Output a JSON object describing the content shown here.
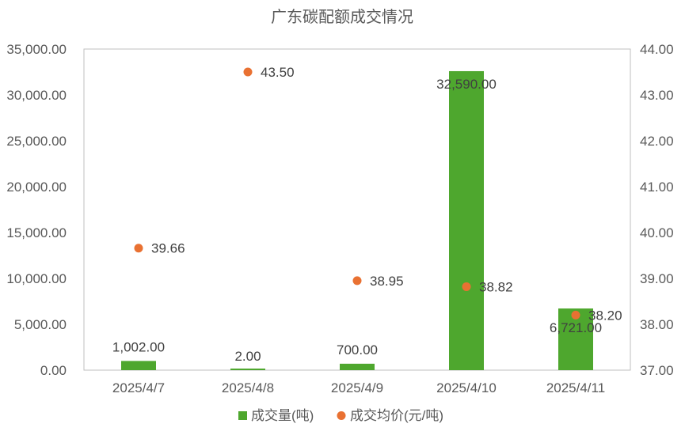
{
  "chart_data": {
    "type": "bar",
    "title": "广东碳配额成交情况",
    "categories": [
      "2025/4/7",
      "2025/4/8",
      "2025/4/9",
      "2025/4/10",
      "2025/4/11"
    ],
    "series": [
      {
        "name": "成交量(吨)",
        "type": "bar",
        "axis": "left",
        "color": "#4EA72E",
        "values": [
          1002,
          2,
          700,
          32590,
          6721
        ],
        "labels": [
          "1,002.00",
          "2.00",
          "700.00",
          "32,590.00",
          "6,721.00"
        ]
      },
      {
        "name": "成交均价(元/吨)",
        "type": "scatter",
        "axis": "right",
        "color": "#E97132",
        "values": [
          39.66,
          43.5,
          38.95,
          38.82,
          38.2
        ],
        "labels": [
          "39.66",
          "43.50",
          "38.95",
          "38.82",
          "38.20"
        ]
      }
    ],
    "y_left": {
      "min": 0,
      "max": 35000,
      "step": 5000,
      "ticks": [
        "0.00",
        "5,000.00",
        "10,000.00",
        "15,000.00",
        "20,000.00",
        "25,000.00",
        "30,000.00",
        "35,000.00"
      ]
    },
    "y_right": {
      "min": 37,
      "max": 44,
      "step": 1,
      "ticks": [
        "37.00",
        "38.00",
        "39.00",
        "40.00",
        "41.00",
        "42.00",
        "43.00",
        "44.00"
      ]
    },
    "grid": false,
    "legend_position": "bottom"
  }
}
